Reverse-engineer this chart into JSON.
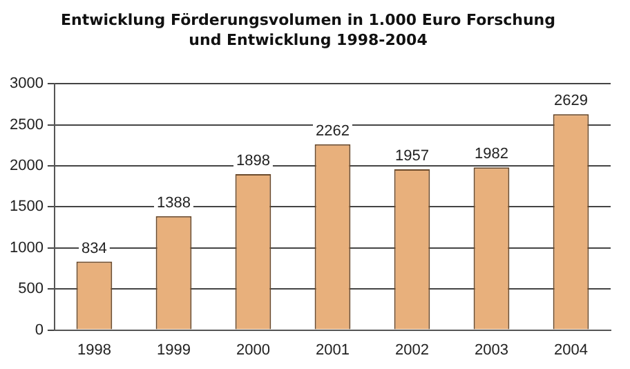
{
  "chart_data": {
    "type": "bar",
    "title": "Entwicklung Förderungsvolumen in 1.000 Euro Forschung\nund Entwicklung 1998-2004",
    "categories": [
      "1998",
      "1999",
      "2000",
      "2001",
      "2002",
      "2003",
      "2004"
    ],
    "values": [
      834,
      1388,
      1898,
      2262,
      1957,
      1982,
      2629
    ],
    "color": "#e8b07c",
    "ylim": [
      0,
      3000
    ],
    "yticks": [
      0,
      500,
      1000,
      1500,
      2000,
      2500,
      3000
    ],
    "grid": "y",
    "data_labels": true
  }
}
